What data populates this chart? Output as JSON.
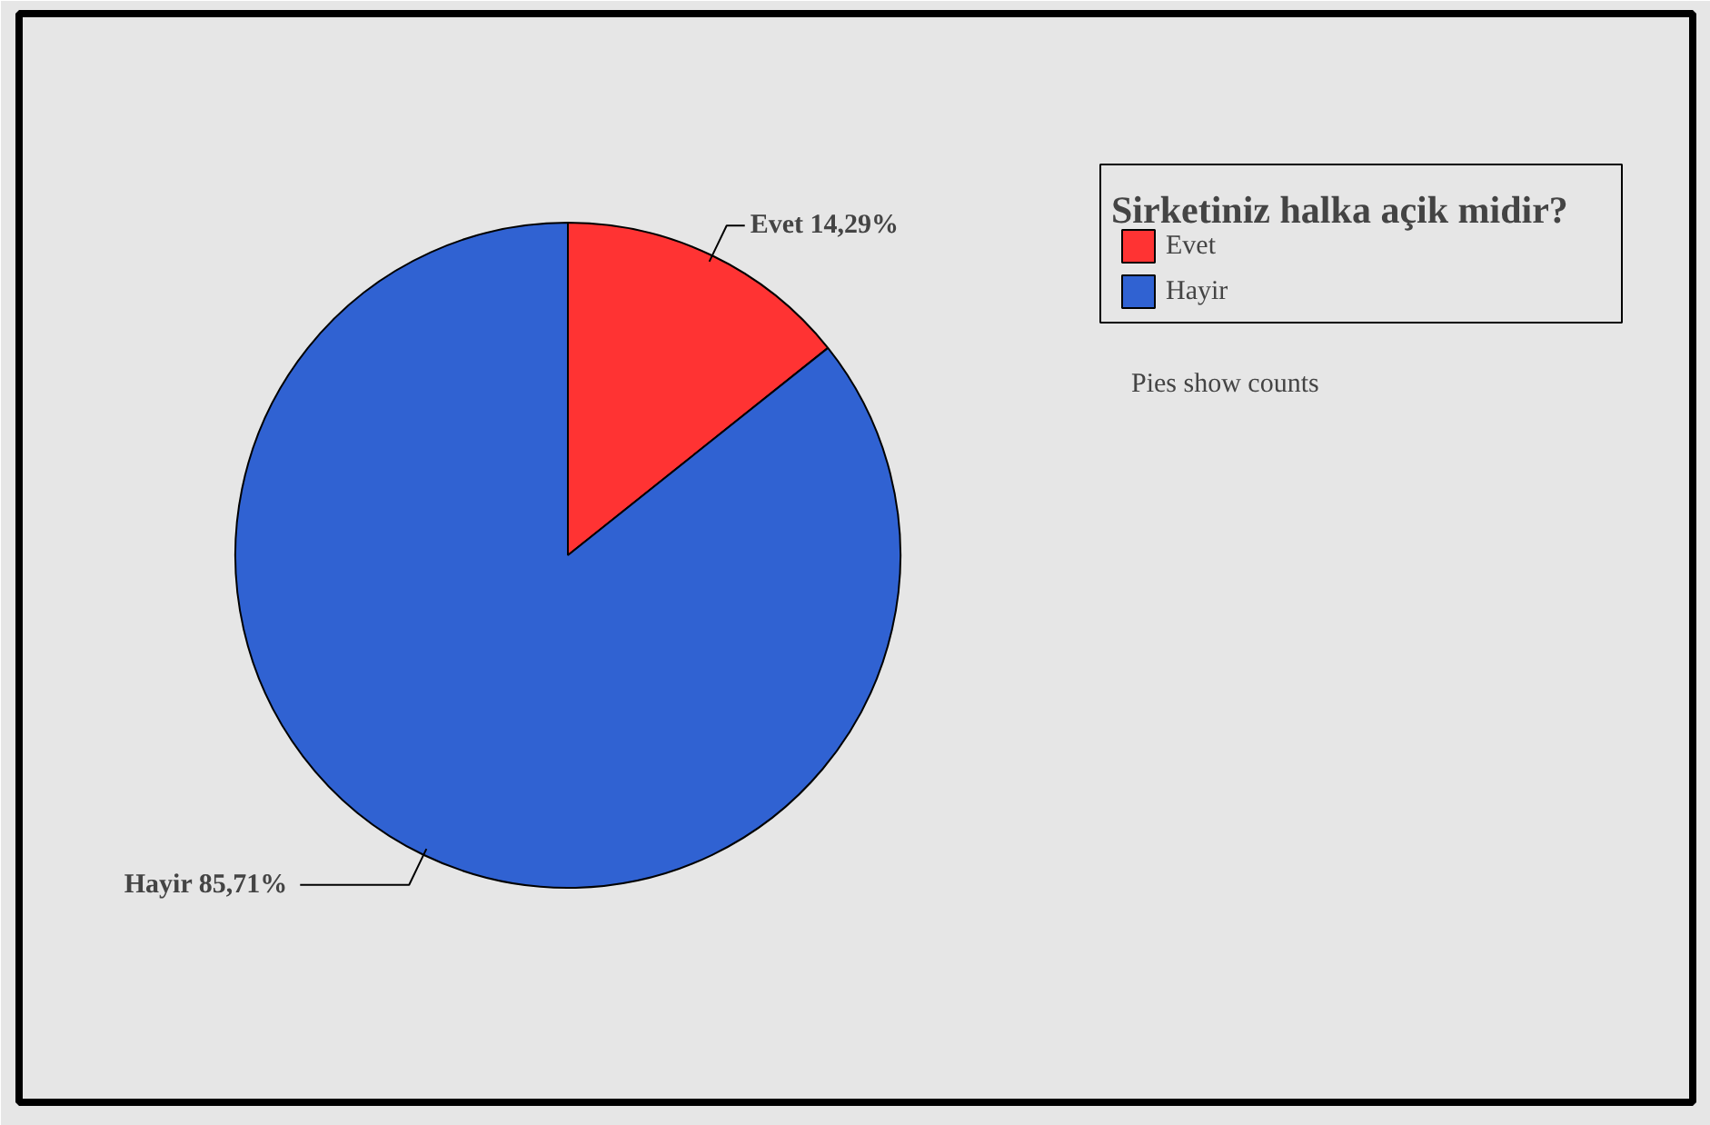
{
  "chart_data": {
    "type": "pie",
    "legend_title": "Sirketiniz halka açik midir?",
    "categories": [
      "Evet",
      "Hayir"
    ],
    "values": [
      14.29,
      85.71
    ],
    "colors": [
      "#ff3333",
      "#3062d2"
    ],
    "value_labels": [
      "14,29%",
      "85,71%"
    ],
    "legend": "right",
    "annotations": [
      "Pies show counts"
    ]
  }
}
